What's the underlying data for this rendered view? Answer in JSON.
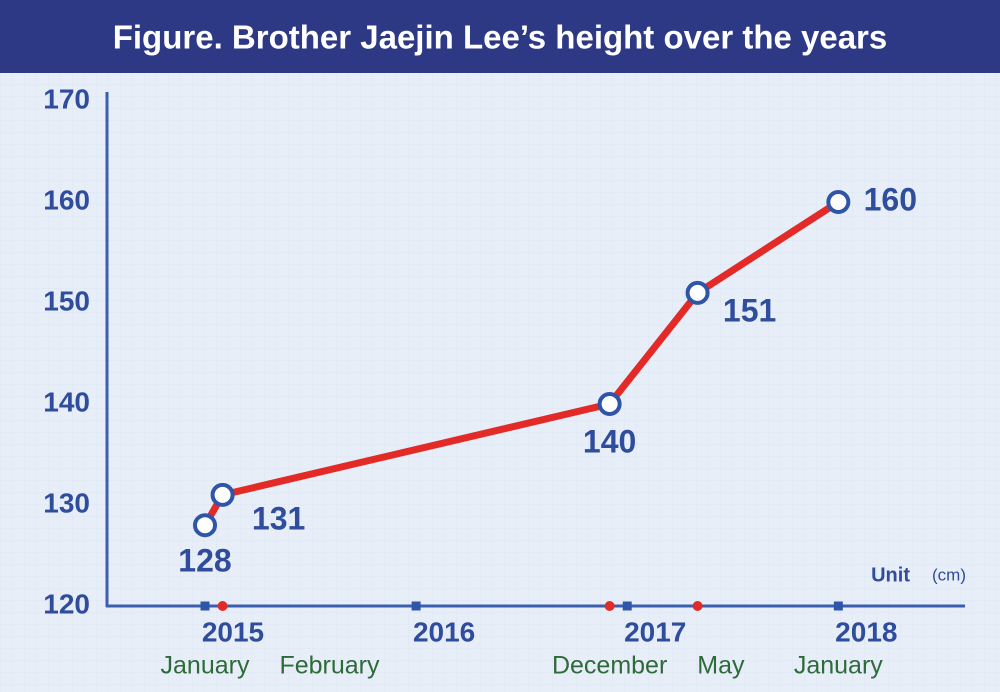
{
  "chart_data": {
    "type": "line",
    "title": "Figure. Brother Jaejin Lee’s height over the years",
    "x": [
      "2015-01",
      "2015-02",
      "2016-12",
      "2017-05",
      "2018-01"
    ],
    "month_labels": [
      "January",
      "February",
      "December",
      "May",
      "January"
    ],
    "values": [
      128,
      131,
      140,
      151,
      160
    ],
    "color": "#e32a27",
    "xlim": [
      2014.55,
      2018.6
    ],
    "xticks": [
      2015,
      2016,
      2017,
      2018
    ],
    "ylim": [
      120,
      170
    ],
    "yticks": [
      120,
      130,
      140,
      150,
      160,
      170
    ],
    "annotations": [
      "Unit",
      "(cm)"
    ]
  }
}
